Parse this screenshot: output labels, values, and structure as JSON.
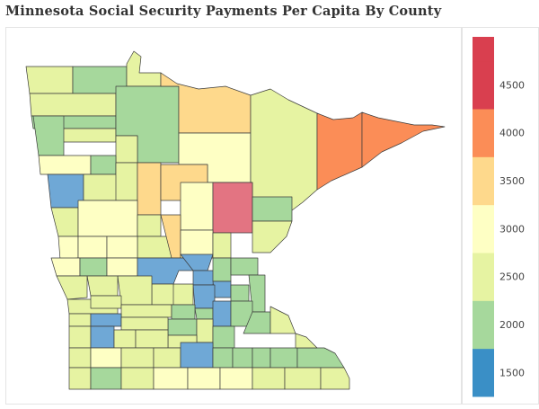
{
  "title": "Minnesota Social Security Payments Per Capita By County",
  "colors": {
    "c1500": "#3a8fc6",
    "c1750": "#6fa8d6",
    "c2000": "#a6d89c",
    "c2500": "#e6f3a2",
    "c3000": "#feffc4",
    "c3500": "#fed98c",
    "c4000": "#fb8d57",
    "c4500": "#d93f4f",
    "pink": "#e37482"
  },
  "legend": {
    "bins": [
      {
        "from": 1250,
        "to": 1750,
        "color": "#3a8fc6"
      },
      {
        "from": 1750,
        "to": 2250,
        "color": "#a6d89c"
      },
      {
        "from": 2250,
        "to": 2750,
        "color": "#e6f3a2"
      },
      {
        "from": 2750,
        "to": 3250,
        "color": "#feffc4"
      },
      {
        "from": 3250,
        "to": 3750,
        "color": "#fed98c"
      },
      {
        "from": 3750,
        "to": 4250,
        "color": "#fb8d57"
      },
      {
        "from": 4250,
        "to": 4750,
        "color": "#d93f4f"
      },
      {
        "from": 4750,
        "to": 5000,
        "color": "#d93f4f"
      }
    ],
    "ticks": [
      "4500",
      "4000",
      "3500",
      "3000",
      "2500",
      "2000",
      "1500"
    ],
    "tick_values": [
      4500,
      4000,
      3500,
      3000,
      2500,
      2000,
      1500
    ],
    "range": [
      1250,
      5000
    ]
  }
}
